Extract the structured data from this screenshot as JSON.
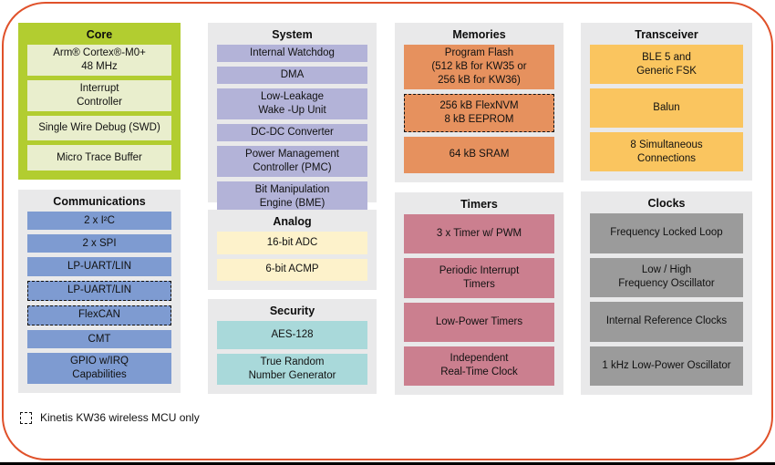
{
  "legend": {
    "label": "Kinetis KW36 wireless MCU only"
  },
  "colors": {
    "frame_border": "#e0512a",
    "bottom_edge": "#000000",
    "section_background": "#e9e9ea",
    "core_background": "#b2cd30",
    "core_item": "#e9eecd",
    "communications_item": "#7e9bd1",
    "system_item": "#b3b3d8",
    "analog_item": "#fdf2cb",
    "security_item": "#a9d9da",
    "memories_item": "#e6915e",
    "timers_item": "#cb7f8f",
    "transceiver_item": "#fac55f",
    "clocks_item": "#9b9b9b"
  },
  "sections": {
    "core": {
      "title": "Core",
      "items": [
        {
          "label": "Arm® Cortex®-M0+\n48 MHz"
        },
        {
          "label": "Interrupt\nController"
        },
        {
          "label": "Single Wire Debug (SWD)"
        },
        {
          "label": "Micro Trace Buffer"
        }
      ]
    },
    "communications": {
      "title": "Communications",
      "items": [
        {
          "label": "2 x I²C"
        },
        {
          "label": "2 x SPI"
        },
        {
          "label": "LP-UART/LIN"
        },
        {
          "label": "LP-UART/LIN",
          "dashed": true
        },
        {
          "label": "FlexCAN",
          "dashed": true
        },
        {
          "label": "CMT"
        },
        {
          "label": "GPIO w/IRQ\nCapabilities"
        }
      ]
    },
    "system": {
      "title": "System",
      "items": [
        {
          "label": "Internal Watchdog"
        },
        {
          "label": "DMA"
        },
        {
          "label": "Low-Leakage\nWake -Up Unit"
        },
        {
          "label": "DC-DC Converter"
        },
        {
          "label": "Power Management\nController (PMC)"
        },
        {
          "label": "Bit Manipulation\nEngine (BME)"
        }
      ]
    },
    "analog": {
      "title": "Analog",
      "items": [
        {
          "label": "16-bit ADC"
        },
        {
          "label": "6-bit ACMP"
        }
      ]
    },
    "security": {
      "title": "Security",
      "items": [
        {
          "label": "AES-128"
        },
        {
          "label": "True Random\nNumber Generator"
        }
      ]
    },
    "memories": {
      "title": "Memories",
      "items": [
        {
          "label": "Program Flash\n(512 kB for KW35 or\n256 kB for KW36)"
        },
        {
          "label": "256 kB FlexNVM\n8 kB EEPROM",
          "dashed": true
        },
        {
          "label": "64 kB SRAM"
        }
      ]
    },
    "timers": {
      "title": "Timers",
      "items": [
        {
          "label": "3 x Timer w/ PWM"
        },
        {
          "label": "Periodic Interrupt\nTimers"
        },
        {
          "label": "Low-Power Timers"
        },
        {
          "label": "Independent\nReal-Time Clock"
        }
      ]
    },
    "transceiver": {
      "title": "Transceiver",
      "items": [
        {
          "label": "BLE 5 and\nGeneric FSK"
        },
        {
          "label": "Balun"
        },
        {
          "label": "8 Simultaneous\nConnections"
        }
      ]
    },
    "clocks": {
      "title": "Clocks",
      "items": [
        {
          "label": "Frequency Locked Loop"
        },
        {
          "label": "Low / High\nFrequency Oscillator"
        },
        {
          "label": "Internal Reference Clocks"
        },
        {
          "label": "1 kHz Low-Power Oscillator"
        }
      ]
    }
  }
}
